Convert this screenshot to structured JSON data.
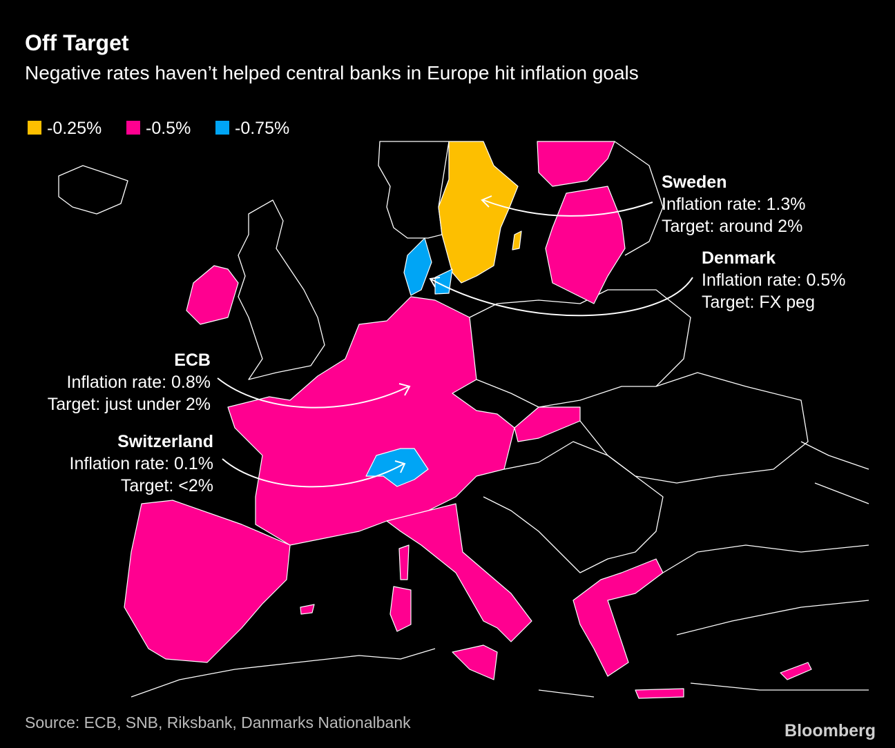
{
  "header": {
    "title": "Off Target",
    "subtitle": "Negative rates haven’t helped central banks in Europe hit inflation goals"
  },
  "legend": [
    {
      "label": "-0.25%",
      "color": "#fdbf00"
    },
    {
      "label": "-0.5%",
      "color": "#ff0090"
    },
    {
      "label": "-0.75%",
      "color": "#00a5f5"
    }
  ],
  "annotations": [
    {
      "title": "Sweden",
      "lines": [
        "Inflation rate: 1.3%",
        "Target: around 2%"
      ]
    },
    {
      "title": "Denmark",
      "lines": [
        "Inflation rate: 0.5%",
        "Target: FX peg"
      ]
    },
    {
      "title": "ECB",
      "lines": [
        "Inflation rate: 0.8%",
        "Target: just under 2%"
      ]
    },
    {
      "title": "Switzerland",
      "lines": [
        "Inflation rate: 0.1%",
        "Target: <2%"
      ]
    }
  ],
  "footer": {
    "source": "Source: ECB, SNB, Riksbank, Danmarks Nationalbank",
    "logo": "Bloomberg"
  }
}
